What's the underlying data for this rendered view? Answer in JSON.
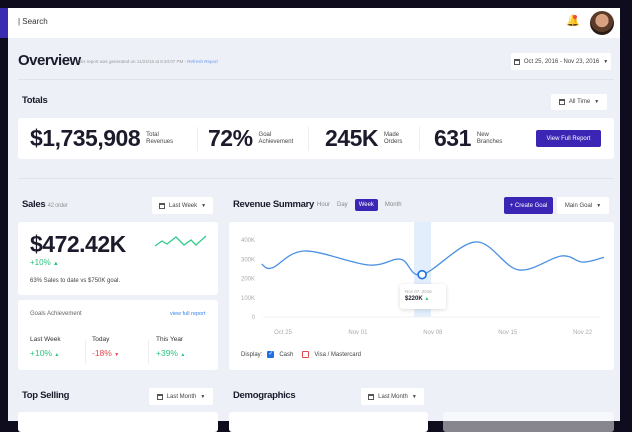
{
  "header": {
    "search_label": "| Search",
    "bell_icon": "bell-icon",
    "avatar": "user-avatar"
  },
  "overview": {
    "title": "Overview",
    "subtitle": "This report was generated on 11/24/16 at 8:34:07 PM - ",
    "refresh": "Refresh Report",
    "date_range": "Oct 25, 2016 - Nov 23, 2016"
  },
  "totals": {
    "title": "Totals",
    "filter": "All Time",
    "items": [
      {
        "value": "$1,735,908",
        "label1": "Total",
        "label2": "Revenues"
      },
      {
        "value": "72%",
        "label1": "Goal",
        "label2": "Achievement"
      },
      {
        "value": "245K",
        "label1": "Made",
        "label2": "Orders"
      },
      {
        "value": "631",
        "label1": "New",
        "label2": "Branches"
      }
    ],
    "report_button": "View Full Report"
  },
  "sales": {
    "title": "Sales",
    "count": "42 order",
    "filter": "Last Week",
    "amount": "$472.42K",
    "change": "+10%",
    "note": "63% Sales to date vs $750K goal.",
    "goals": {
      "title": "Goals Achievement",
      "link": "view full report",
      "items": [
        {
          "label": "Last Week",
          "value": "+10%",
          "trend": "up"
        },
        {
          "label": "Today",
          "value": "-18%",
          "trend": "down"
        },
        {
          "label": "This Year",
          "value": "+39%",
          "trend": "up"
        }
      ]
    }
  },
  "revenue": {
    "title": "Revenue Summary",
    "tabs": [
      "Hour",
      "Day",
      "Week",
      "Month"
    ],
    "active_tab": "Week",
    "create_goal": "+ Create Goal",
    "goal_select": "Main Goal",
    "display_label": "Display:",
    "legend": [
      {
        "label": "Cash",
        "checked": true,
        "color": "#1f6fe5"
      },
      {
        "label": "Visa / Mastercard",
        "checked": false,
        "color": "#e5484d"
      }
    ],
    "tooltip": {
      "date": "Nov 07, 2016",
      "value": "$220K"
    }
  },
  "chart_data": {
    "type": "line",
    "ylim": [
      0,
      400000
    ],
    "yticks": [
      "0",
      "100K",
      "200K",
      "300K",
      "400K"
    ],
    "xticks": [
      "Oct 25",
      "Nov 01",
      "Nov 08",
      "Nov 15",
      "Nov 22"
    ],
    "grid": false,
    "color": "#4a90e2",
    "x": [
      "2016-10-23",
      "2016-10-24",
      "2016-10-27",
      "2016-11-02",
      "2016-11-05",
      "2016-11-07",
      "2016-11-12",
      "2016-11-16",
      "2016-11-20",
      "2016-11-22",
      "2016-11-24"
    ],
    "y": [
      275000,
      255000,
      343000,
      270000,
      300000,
      220000,
      390000,
      245000,
      317000,
      285000,
      310000
    ],
    "highlight": "2016-11-07"
  },
  "top_selling": {
    "title": "Top Selling",
    "filter": "Last Month"
  },
  "demographics": {
    "title": "Demographics",
    "filter": "Last Month"
  },
  "colors": {
    "accent": "#3b25b4",
    "positive": "#2ec27e",
    "negative": "#e5484d",
    "background": "#edf0f7"
  }
}
